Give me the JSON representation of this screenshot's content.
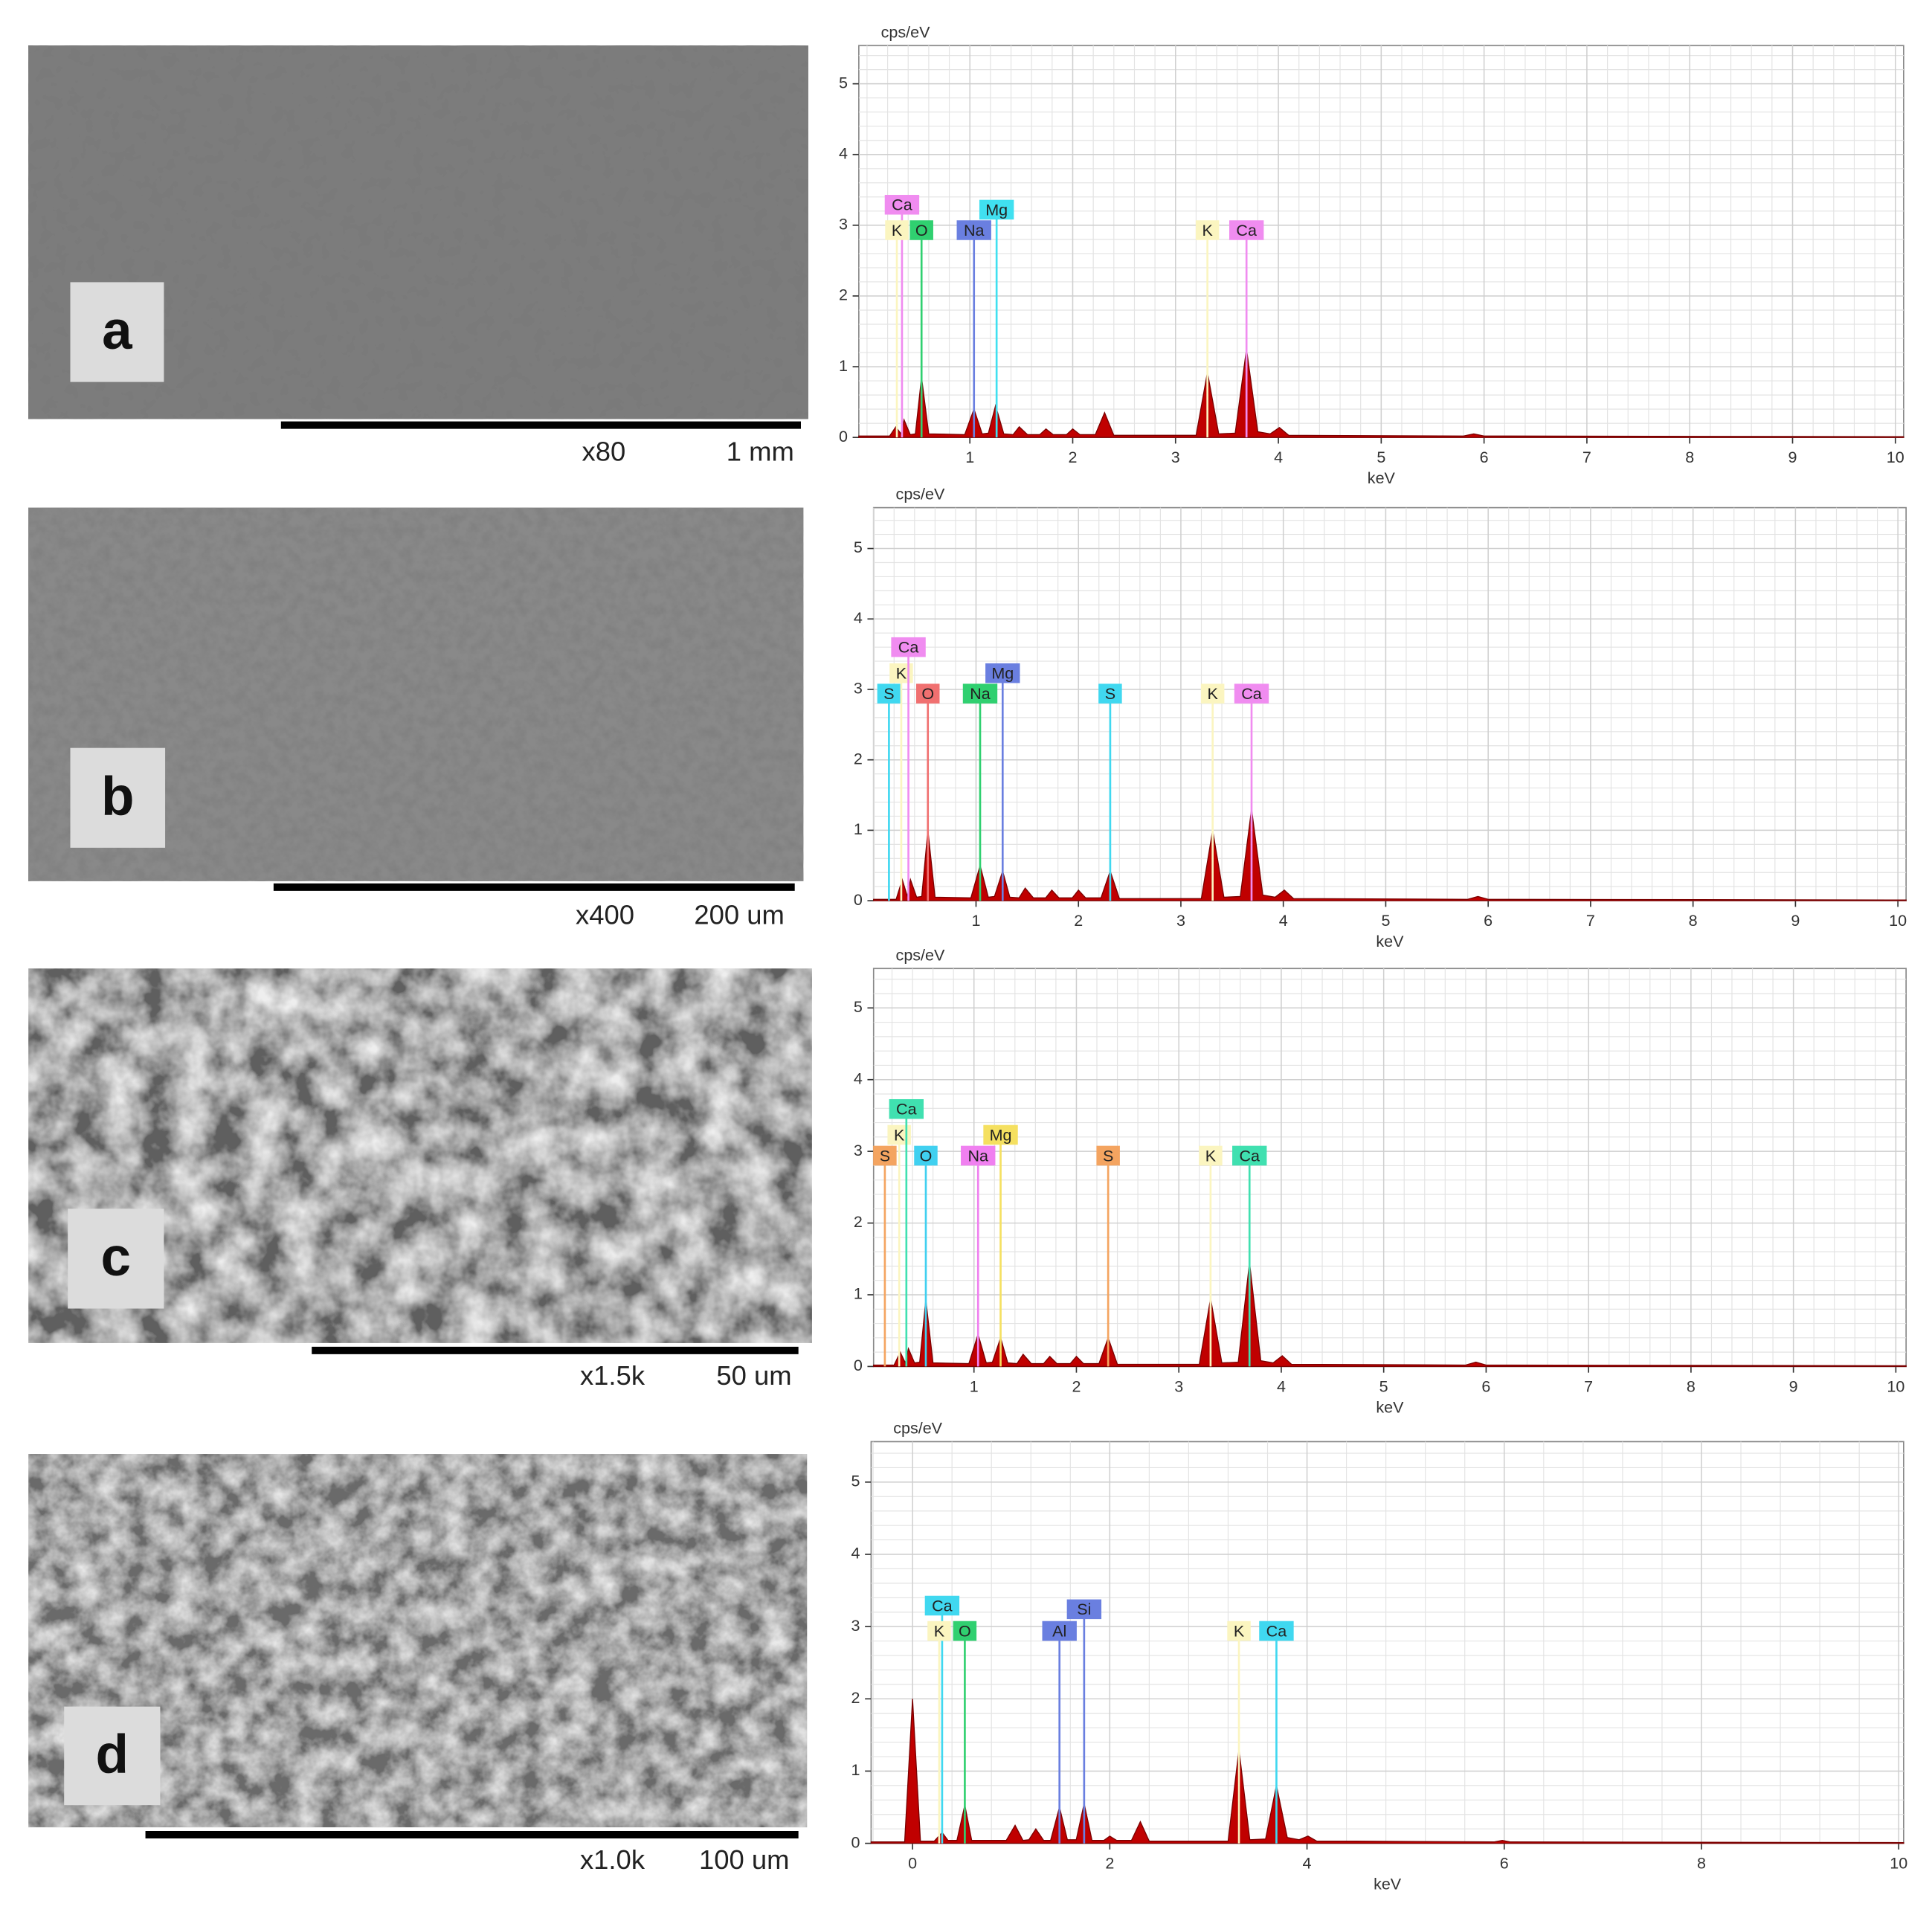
{
  "panels": [
    {
      "label": "a",
      "magnification": "x80",
      "scale_bar": "1 mm"
    },
    {
      "label": "b",
      "magnification": "x400",
      "scale_bar": "200 um"
    },
    {
      "label": "c",
      "magnification": "x1.5k",
      "scale_bar": "50 um"
    },
    {
      "label": "d",
      "magnification": "x1.0k",
      "scale_bar": "100 um"
    }
  ],
  "chart_data": [
    {
      "type": "area",
      "x_label": "keV",
      "y_label": "cps/eV",
      "color": "#c00000",
      "xlim": [
        -0.08,
        10.08
      ],
      "ylim": [
        0,
        5.54
      ],
      "xticks": [
        1,
        2,
        3,
        4,
        5,
        6,
        7,
        8,
        9,
        10
      ],
      "yticks": [
        0,
        1,
        2,
        3,
        4,
        5
      ],
      "grid": true,
      "x": [
        -0.08,
        0.22,
        0.28,
        0.33,
        0.36,
        0.42,
        0.47,
        0.53,
        0.6,
        0.95,
        1.04,
        1.12,
        1.18,
        1.25,
        1.33,
        1.42,
        1.48,
        1.56,
        1.68,
        1.74,
        1.81,
        1.94,
        2.0,
        2.07,
        2.22,
        2.31,
        2.4,
        3.2,
        3.31,
        3.42,
        3.58,
        3.69,
        3.8,
        3.92,
        4.01,
        4.1,
        5.8,
        5.9,
        6.0,
        10.08
      ],
      "values": [
        0.02,
        0.02,
        0.15,
        0.05,
        0.25,
        0.04,
        0.05,
        0.85,
        0.05,
        0.04,
        0.4,
        0.05,
        0.06,
        0.45,
        0.05,
        0.04,
        0.15,
        0.04,
        0.04,
        0.12,
        0.04,
        0.04,
        0.12,
        0.04,
        0.04,
        0.35,
        0.03,
        0.03,
        0.92,
        0.05,
        0.06,
        1.25,
        0.08,
        0.05,
        0.14,
        0.03,
        0.02,
        0.05,
        0.02,
        0.01
      ],
      "markers": [
        {
          "label": "Ca",
          "energy": 0.34,
          "height": 3.29,
          "color": "#f08cf0"
        },
        {
          "label": "K",
          "energy": 0.29,
          "height": 2.93,
          "color": "#fbf5c0"
        },
        {
          "label": "O",
          "energy": 0.53,
          "height": 2.93,
          "color": "#30d070"
        },
        {
          "label": "Na",
          "energy": 1.04,
          "height": 2.93,
          "color": "#6a7fe0"
        },
        {
          "label": "Mg",
          "energy": 1.26,
          "height": 3.22,
          "color": "#40e0f0"
        },
        {
          "label": "K",
          "energy": 3.31,
          "height": 2.93,
          "color": "#fbf5c0"
        },
        {
          "label": "Ca",
          "energy": 3.69,
          "height": 2.93,
          "color": "#f08cf0"
        }
      ]
    },
    {
      "type": "area",
      "x_label": "keV",
      "y_label": "cps/eV",
      "color": "#c00000",
      "xlim": [
        0,
        10.08
      ],
      "ylim": [
        0,
        5.58
      ],
      "xticks": [
        1,
        2,
        3,
        4,
        5,
        6,
        7,
        8,
        9,
        10
      ],
      "yticks": [
        0,
        1,
        2,
        3,
        4,
        5
      ],
      "grid": true,
      "x": [
        0,
        0.22,
        0.28,
        0.33,
        0.36,
        0.42,
        0.47,
        0.53,
        0.6,
        0.95,
        1.04,
        1.12,
        1.18,
        1.26,
        1.33,
        1.42,
        1.48,
        1.56,
        1.68,
        1.74,
        1.81,
        1.94,
        2.0,
        2.07,
        2.22,
        2.31,
        2.4,
        3.2,
        3.31,
        3.42,
        3.58,
        3.69,
        3.8,
        3.92,
        4.01,
        4.1,
        5.8,
        5.9,
        6.0,
        10.08
      ],
      "values": [
        0.02,
        0.02,
        0.3,
        0.06,
        0.3,
        0.05,
        0.06,
        1.0,
        0.05,
        0.04,
        0.5,
        0.05,
        0.06,
        0.42,
        0.05,
        0.04,
        0.18,
        0.04,
        0.04,
        0.15,
        0.04,
        0.04,
        0.15,
        0.04,
        0.04,
        0.42,
        0.03,
        0.03,
        1.0,
        0.05,
        0.06,
        1.3,
        0.08,
        0.05,
        0.15,
        0.03,
        0.02,
        0.06,
        0.02,
        0.01
      ],
      "markers": [
        {
          "label": "S",
          "energy": 0.15,
          "height": 2.94,
          "color": "#40d8f0"
        },
        {
          "label": "K",
          "energy": 0.27,
          "height": 3.23,
          "color": "#fbf5c0"
        },
        {
          "label": "Ca",
          "energy": 0.34,
          "height": 3.6,
          "color": "#f08cf0"
        },
        {
          "label": "O",
          "energy": 0.53,
          "height": 2.94,
          "color": "#f07070"
        },
        {
          "label": "Na",
          "energy": 1.04,
          "height": 2.94,
          "color": "#30d070"
        },
        {
          "label": "Mg",
          "energy": 1.26,
          "height": 3.23,
          "color": "#6a7fe0"
        },
        {
          "label": "S",
          "energy": 2.31,
          "height": 2.94,
          "color": "#40d8f0"
        },
        {
          "label": "K",
          "energy": 3.31,
          "height": 2.94,
          "color": "#fbf5c0"
        },
        {
          "label": "Ca",
          "energy": 3.69,
          "height": 2.94,
          "color": "#f08cf0"
        }
      ]
    },
    {
      "type": "area",
      "x_label": "keV",
      "y_label": "cps/eV",
      "color": "#c00000",
      "xlim": [
        0.02,
        10.1
      ],
      "ylim": [
        0,
        5.55
      ],
      "xticks": [
        1,
        2,
        3,
        4,
        5,
        6,
        7,
        8,
        9,
        10
      ],
      "yticks": [
        0,
        1,
        2,
        3,
        4,
        5
      ],
      "grid": true,
      "x": [
        0.02,
        0.22,
        0.28,
        0.33,
        0.36,
        0.42,
        0.47,
        0.53,
        0.6,
        0.95,
        1.04,
        1.12,
        1.18,
        1.26,
        1.33,
        1.42,
        1.48,
        1.56,
        1.68,
        1.74,
        1.81,
        1.94,
        2.0,
        2.07,
        2.22,
        2.31,
        2.4,
        3.2,
        3.31,
        3.42,
        3.58,
        3.69,
        3.8,
        3.92,
        4.01,
        4.1,
        5.8,
        5.9,
        6.0,
        10.1
      ],
      "values": [
        0.02,
        0.02,
        0.2,
        0.05,
        0.25,
        0.05,
        0.06,
        0.93,
        0.05,
        0.04,
        0.45,
        0.05,
        0.06,
        0.4,
        0.05,
        0.04,
        0.17,
        0.04,
        0.04,
        0.14,
        0.04,
        0.04,
        0.14,
        0.04,
        0.04,
        0.4,
        0.03,
        0.03,
        0.95,
        0.05,
        0.06,
        1.45,
        0.08,
        0.05,
        0.15,
        0.03,
        0.02,
        0.06,
        0.02,
        0.01
      ],
      "markers": [
        {
          "label": "S",
          "energy": 0.13,
          "height": 2.94,
          "color": "#f4a460"
        },
        {
          "label": "K",
          "energy": 0.27,
          "height": 3.23,
          "color": "#fbf5c0"
        },
        {
          "label": "Ca",
          "energy": 0.34,
          "height": 3.59,
          "color": "#40e0b0"
        },
        {
          "label": "O",
          "energy": 0.53,
          "height": 2.94,
          "color": "#40d0f0"
        },
        {
          "label": "Na",
          "energy": 1.04,
          "height": 2.94,
          "color": "#f080f0"
        },
        {
          "label": "Mg",
          "energy": 1.26,
          "height": 3.23,
          "color": "#f5e060"
        },
        {
          "label": "S",
          "energy": 2.31,
          "height": 2.94,
          "color": "#f4a460"
        },
        {
          "label": "K",
          "energy": 3.31,
          "height": 2.94,
          "color": "#fbf5c0"
        },
        {
          "label": "Ca",
          "energy": 3.69,
          "height": 2.94,
          "color": "#40e0b0"
        }
      ]
    },
    {
      "type": "area",
      "x_label": "keV",
      "y_label": "cps/eV",
      "color": "#c00000",
      "xlim": [
        -0.42,
        10.05
      ],
      "ylim": [
        0,
        5.56
      ],
      "xticks": [
        0,
        2,
        4,
        6,
        8,
        10
      ],
      "yticks": [
        0,
        1,
        2,
        3,
        4,
        5
      ],
      "grid": true,
      "x": [
        -0.42,
        -0.08,
        0,
        0.08,
        0.22,
        0.3,
        0.36,
        0.45,
        0.53,
        0.6,
        0.95,
        1.04,
        1.12,
        1.18,
        1.25,
        1.33,
        1.4,
        1.49,
        1.57,
        1.66,
        1.74,
        1.82,
        1.94,
        2.0,
        2.07,
        2.22,
        2.31,
        2.4,
        3.2,
        3.31,
        3.42,
        3.58,
        3.69,
        3.8,
        3.92,
        4.01,
        4.1,
        4.5,
        5.9,
        5.98,
        6.06,
        10.05
      ],
      "values": [
        0.02,
        0.02,
        2.0,
        0.03,
        0.03,
        0.15,
        0.04,
        0.04,
        0.53,
        0.04,
        0.04,
        0.25,
        0.04,
        0.05,
        0.2,
        0.04,
        0.04,
        0.5,
        0.05,
        0.05,
        0.55,
        0.04,
        0.04,
        0.1,
        0.04,
        0.04,
        0.3,
        0.03,
        0.03,
        1.3,
        0.05,
        0.06,
        0.8,
        0.08,
        0.05,
        0.1,
        0.03,
        0.03,
        0.02,
        0.04,
        0.02,
        0.01
      ],
      "markers": [
        {
          "label": "Ca",
          "energy": 0.3,
          "height": 3.29,
          "color": "#40d8f0"
        },
        {
          "label": "K",
          "energy": 0.27,
          "height": 2.94,
          "color": "#fbf5c0"
        },
        {
          "label": "O",
          "energy": 0.53,
          "height": 2.94,
          "color": "#30d070"
        },
        {
          "label": "Al",
          "energy": 1.49,
          "height": 2.94,
          "color": "#6a7fe0"
        },
        {
          "label": "Si",
          "energy": 1.74,
          "height": 3.24,
          "color": "#6a7fe0"
        },
        {
          "label": "K",
          "energy": 3.31,
          "height": 2.94,
          "color": "#fbf5c0"
        },
        {
          "label": "Ca",
          "energy": 3.69,
          "height": 2.94,
          "color": "#40d8f0"
        }
      ]
    }
  ]
}
